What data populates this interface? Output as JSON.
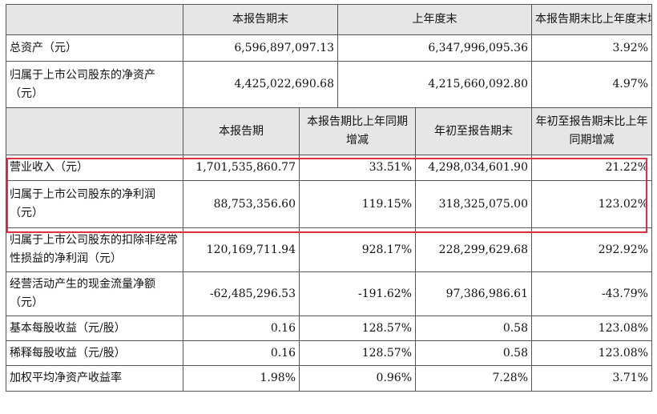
{
  "top_header": {
    "col1": "本报告期末",
    "col2": "上年度末",
    "col3": "本报告期末比上年度末增减"
  },
  "top_rows": [
    {
      "label": "总资产（元）",
      "v1": "6,596,897,097.13",
      "v2": "6,347,996,095.36",
      "v3": "3.92%"
    },
    {
      "label": "归属于上市公司股东的净资产（元）",
      "v1": "4,425,022,690.68",
      "v2": "4,215,660,092.80",
      "v3": "4.97%"
    }
  ],
  "mid_header": {
    "col1": "本报告期",
    "col2": "本报告期比上年同期增减",
    "col3": "年初至报告期末",
    "col4": "年初至报告期末比上年同期增减"
  },
  "rows": [
    {
      "label": "营业收入（元）",
      "v1": "1,701,535,860.77",
      "v2": "33.51%",
      "v3": "4,298,034,601.90",
      "v4": "21.22%"
    },
    {
      "label": "归属于上市公司股东的净利润（元）",
      "v1": "88,753,356.60",
      "v2": "119.15%",
      "v3": "318,325,075.00",
      "v4": "123.02%"
    },
    {
      "label": "归属于上市公司股东的扣除非经常性损益的净利润（元）",
      "v1": "120,169,711.94",
      "v2": "928.17%",
      "v3": "228,299,629.68",
      "v4": "292.92%"
    },
    {
      "label": "经营活动产生的现金流量净额（元）",
      "v1": "-62,485,296.53",
      "v2": "-191.62%",
      "v3": "97,386,986.61",
      "v4": "-43.79%"
    },
    {
      "label": "基本每股收益（元/股）",
      "v1": "0.16",
      "v2": "128.57%",
      "v3": "0.58",
      "v4": "123.08%"
    },
    {
      "label": "稀释每股收益（元/股）",
      "v1": "0.16",
      "v2": "128.57%",
      "v3": "0.58",
      "v4": "123.08%"
    },
    {
      "label": "加权平均净资产收益率",
      "v1": "1.98%",
      "v2": "0.96%",
      "v3": "7.28%",
      "v4": "3.71%"
    }
  ],
  "highlight_color": "#e0313a"
}
